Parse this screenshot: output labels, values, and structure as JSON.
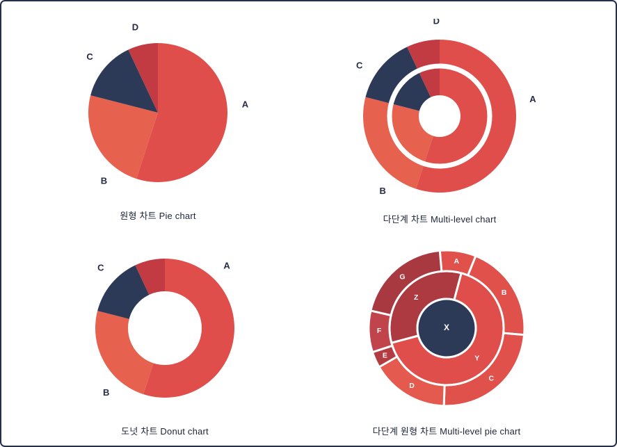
{
  "page": {
    "background": "#ffffff",
    "border_color": "#27304a"
  },
  "chart_data": [
    {
      "id": "pie-chart",
      "type": "pie",
      "title": "원형 차트 Pie chart",
      "labels_position": "outside",
      "segments": [
        {
          "label": "A",
          "value": 55,
          "color": "#df4e4a",
          "label_angle": 85
        },
        {
          "label": "B",
          "value": 24,
          "color": "#e7614f",
          "label_angle": 218
        },
        {
          "label": "C",
          "value": 14,
          "color": "#2c3a58",
          "label_angle": 309
        },
        {
          "label": "D",
          "value": 7,
          "color": "#c33b42",
          "label_angle": 345
        }
      ]
    },
    {
      "id": "multi-level-chart",
      "type": "multi-level",
      "title": "다단계 차트 Multi-level chart",
      "labels_position": "outside",
      "overlay": {
        "hole_radius_ratio": 0.27,
        "ring_radius_ratio": 0.65,
        "ring_color": "#ffffff"
      },
      "segments": [
        {
          "label": "A",
          "value": 55,
          "color": "#df4e4a",
          "label_angle": 80
        },
        {
          "label": "B",
          "value": 24,
          "color": "#e7614f",
          "label_angle": 217
        },
        {
          "label": "C",
          "value": 14,
          "color": "#2c3a58",
          "label_angle": 302
        },
        {
          "label": "D",
          "value": 7,
          "color": "#c33b42",
          "label_angle": 358
        }
      ]
    },
    {
      "id": "donut-chart",
      "type": "donut",
      "title": "도넛 차트 Donut chart",
      "labels_position": "outside",
      "segments": [
        {
          "label": "A",
          "value": 55,
          "color": "#df4e4a",
          "label_angle": 45
        },
        {
          "label": "B",
          "value": 24,
          "color": "#e7614f",
          "label_angle": 222
        },
        {
          "label": "C",
          "value": 14,
          "color": "#2c3a58",
          "label_angle": 313
        },
        {
          "label": "",
          "value": 7,
          "color": "#c33b42"
        }
      ]
    },
    {
      "id": "multi-level-pie-chart",
      "type": "sunburst",
      "title": "다단계 원형 차트 Multi-level pie chart",
      "center": {
        "label": "X",
        "color": "#2c3a58"
      },
      "rings": [
        {
          "name": "middle",
          "rotation": 15,
          "segments": [
            {
              "label": "Y",
              "value": 240,
              "color": "#df4e4a"
            },
            {
              "label": "Z",
              "value": 120,
              "color": "#ad3a41"
            }
          ]
        },
        {
          "name": "outer",
          "rotation": -5,
          "segments": [
            {
              "label": "A",
              "value": 27,
              "color": "#e0514b"
            },
            {
              "label": "B",
              "value": 73,
              "color": "#e0514b"
            },
            {
              "label": "C",
              "value": 87,
              "color": "#e0514b"
            },
            {
              "label": "D",
              "value": 58,
              "color": "#e45a4e"
            },
            {
              "label": "E",
              "value": 12,
              "color": "#b33c43"
            },
            {
              "label": "F",
              "value": 31,
              "color": "#c1434b"
            },
            {
              "label": "G",
              "value": 72,
              "color": "#a93941"
            }
          ]
        }
      ]
    }
  ]
}
